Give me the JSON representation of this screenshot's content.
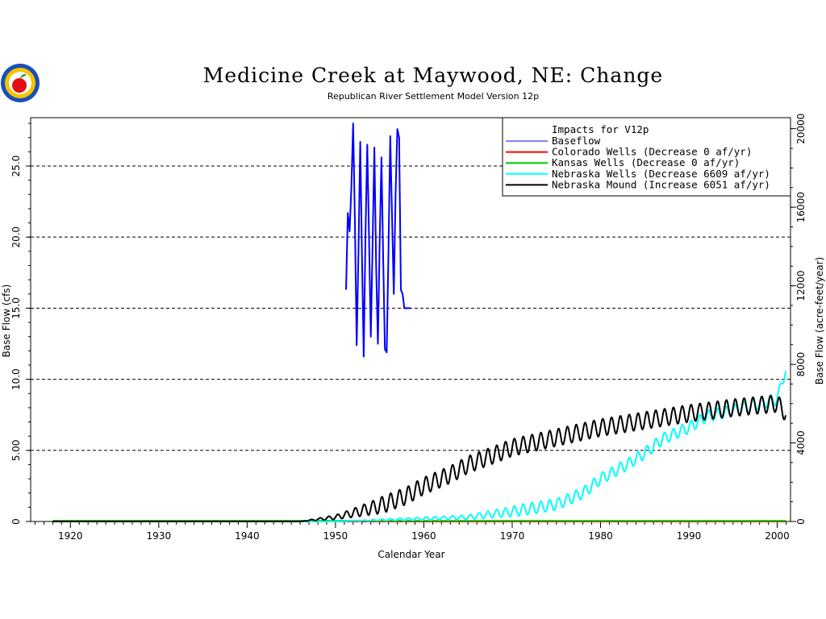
{
  "chart_data": {
    "type": "line",
    "title": "Medicine Creek at Maywood, NE: Change",
    "subtitle": "Republican River Settlement Model Version 12p",
    "xlabel": "Calendar Year",
    "ylabel": "Base Flow (cfs)",
    "ylabel_right": "Base Flow (acre-feet/year)",
    "xlim": [
      1915.5,
      2001.5
    ],
    "ylim": [
      0,
      28.4
    ],
    "ylim_right": [
      0,
      20560
    ],
    "x_ticks": [
      "1920",
      "1930",
      "1940",
      "1950",
      "1960",
      "1970",
      "1980",
      "1990",
      "2000"
    ],
    "y_ticks": [
      "0",
      "5.00",
      "10.0",
      "15.0",
      "20.0",
      "25.0"
    ],
    "y2_ticks": [
      "0",
      "4000",
      "8000",
      "12000",
      "16000",
      "20000"
    ],
    "grid": "horizontal dashed at y-ticks",
    "legend_title": "Impacts for V12p",
    "legend_position": "top-right",
    "series": [
      {
        "name": "Baseflow",
        "color": "#0000ff",
        "x": [
          1951.2,
          1951.4,
          1951.6,
          1951.8,
          1952.0,
          1952.2,
          1952.4,
          1952.6,
          1952.8,
          1953.0,
          1953.2,
          1953.4,
          1953.6,
          1953.8,
          1954.0,
          1954.2,
          1954.4,
          1954.6,
          1954.8,
          1955.0,
          1955.2,
          1955.4,
          1955.6,
          1955.8,
          1956.0,
          1956.2,
          1956.4,
          1956.6,
          1956.8,
          1957.0,
          1957.2,
          1957.4,
          1957.6,
          1957.8,
          1958.0,
          1958.2,
          1958.4,
          1958.5
        ],
        "y": [
          16.3,
          21.7,
          20.4,
          23.5,
          28.0,
          21.0,
          12.4,
          19.0,
          26.7,
          18.5,
          11.6,
          20.2,
          26.5,
          20.0,
          13.0,
          19.5,
          26.3,
          18.0,
          12.5,
          19.7,
          25.6,
          18.6,
          12.1,
          11.9,
          19.0,
          27.1,
          21.5,
          16.0,
          23.0,
          27.6,
          27.0,
          16.3,
          16.0,
          15.0,
          15.0,
          15.0,
          15.0,
          15.0
        ]
      },
      {
        "name": "Colorado Wells  (Decrease     0 af/yr)",
        "color": "#ff0000",
        "x": [
          1918,
          2001
        ],
        "y": [
          0,
          0
        ]
      },
      {
        "name": "Kansas Wells    (Decrease     0 af/yr)",
        "color": "#00cc00",
        "x": [
          1918,
          2001
        ],
        "y": [
          0.05,
          0.05
        ]
      },
      {
        "name": "Nebraska Wells  (Decrease  6609 af/yr)",
        "color": "#00ffff",
        "trend": {
          "x": [
            1918,
            1950,
            1955,
            1960,
            1965,
            1970,
            1975,
            1978,
            1980,
            1983,
            1985,
            1987,
            1990,
            1992,
            1995,
            1998,
            2000,
            2001
          ],
          "y": [
            0,
            0,
            0.1,
            0.2,
            0.3,
            0.7,
            1.2,
            2.0,
            3.0,
            4.0,
            4.8,
            5.8,
            6.6,
            7.4,
            7.8,
            8.3,
            8.6,
            10.8
          ]
        },
        "seasonal_amplitude": 0.4
      },
      {
        "name": "Nebraska Mound  (Increase  6051 af/yr)",
        "color": "#000000",
        "trend": {
          "x": [
            1918,
            1946,
            1948,
            1950,
            1952,
            1955,
            1958,
            1960,
            1963,
            1965,
            1968,
            1970,
            1975,
            1980,
            1985,
            1990,
            1995,
            2000,
            2001
          ],
          "y": [
            0,
            0,
            0.15,
            0.3,
            0.6,
            1.1,
            1.8,
            2.5,
            3.3,
            4.0,
            4.7,
            5.2,
            5.9,
            6.6,
            7.1,
            7.6,
            8.0,
            8.3,
            7.6
          ]
        },
        "seasonal_amplitude": 0.6
      }
    ]
  }
}
